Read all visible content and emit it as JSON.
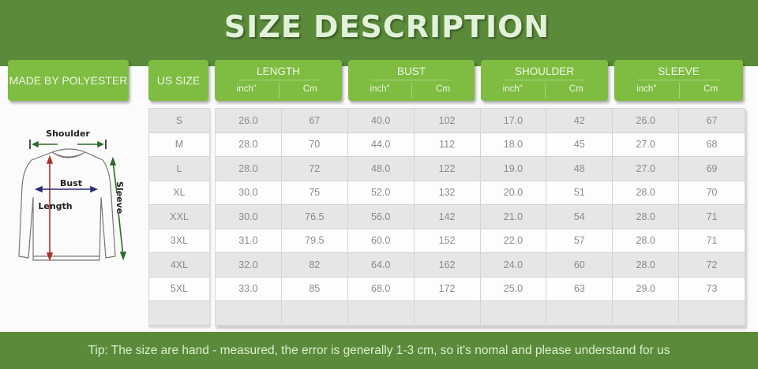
{
  "title": "SIZE DESCRIPTION",
  "headers": {
    "material": "MADE BY POLYESTER",
    "us_size": "US SIZE",
    "groups": [
      {
        "label": "LENGTH",
        "units": [
          "inch\"",
          "Cm"
        ]
      },
      {
        "label": "BUST",
        "units": [
          "inch\"",
          "Cm"
        ]
      },
      {
        "label": "SHOULDER",
        "units": [
          "inch\"",
          "Cm"
        ]
      },
      {
        "label": "SLEEVE",
        "units": [
          "inch\"",
          "Cm"
        ]
      }
    ]
  },
  "diagram": {
    "shoulder": "Shoulder",
    "bust": "Bust",
    "length": "Length",
    "sleeve": "Sleeve"
  },
  "rows": [
    {
      "size": "S",
      "values": [
        "26.0",
        "67",
        "40.0",
        "102",
        "17.0",
        "42",
        "26.0",
        "67"
      ]
    },
    {
      "size": "M",
      "values": [
        "28.0",
        "70",
        "44.0",
        "112",
        "18.0",
        "45",
        "27.0",
        "68"
      ]
    },
    {
      "size": "L",
      "values": [
        "28.0",
        "72",
        "48.0",
        "122",
        "19.0",
        "48",
        "27.0",
        "69"
      ]
    },
    {
      "size": "XL",
      "values": [
        "30.0",
        "75",
        "52.0",
        "132",
        "20.0",
        "51",
        "28.0",
        "70"
      ]
    },
    {
      "size": "XXL",
      "values": [
        "30.0",
        "76.5",
        "56.0",
        "142",
        "21.0",
        "54",
        "28.0",
        "71"
      ]
    },
    {
      "size": "3XL",
      "values": [
        "31.0",
        "79.5",
        "60.0",
        "152",
        "22.0",
        "57",
        "28.0",
        "71"
      ]
    },
    {
      "size": "4XL",
      "values": [
        "32.0",
        "82",
        "64.0",
        "162",
        "24.0",
        "60",
        "28.0",
        "72"
      ]
    },
    {
      "size": "5XL",
      "values": [
        "33.0",
        "85",
        "68.0",
        "172",
        "25.0",
        "63",
        "29.0",
        "73"
      ]
    },
    {
      "size": "",
      "values": [
        "",
        "",
        "",
        "",
        "",
        "",
        "",
        ""
      ]
    }
  ],
  "footer": "Tip: The size are hand - measured, the error is generally 1-3 cm, so it's nomal and please understand for us",
  "colors": {
    "banner": "#5a8a3a",
    "header_box": "#7fbc42",
    "title": "#e2f2d8"
  }
}
